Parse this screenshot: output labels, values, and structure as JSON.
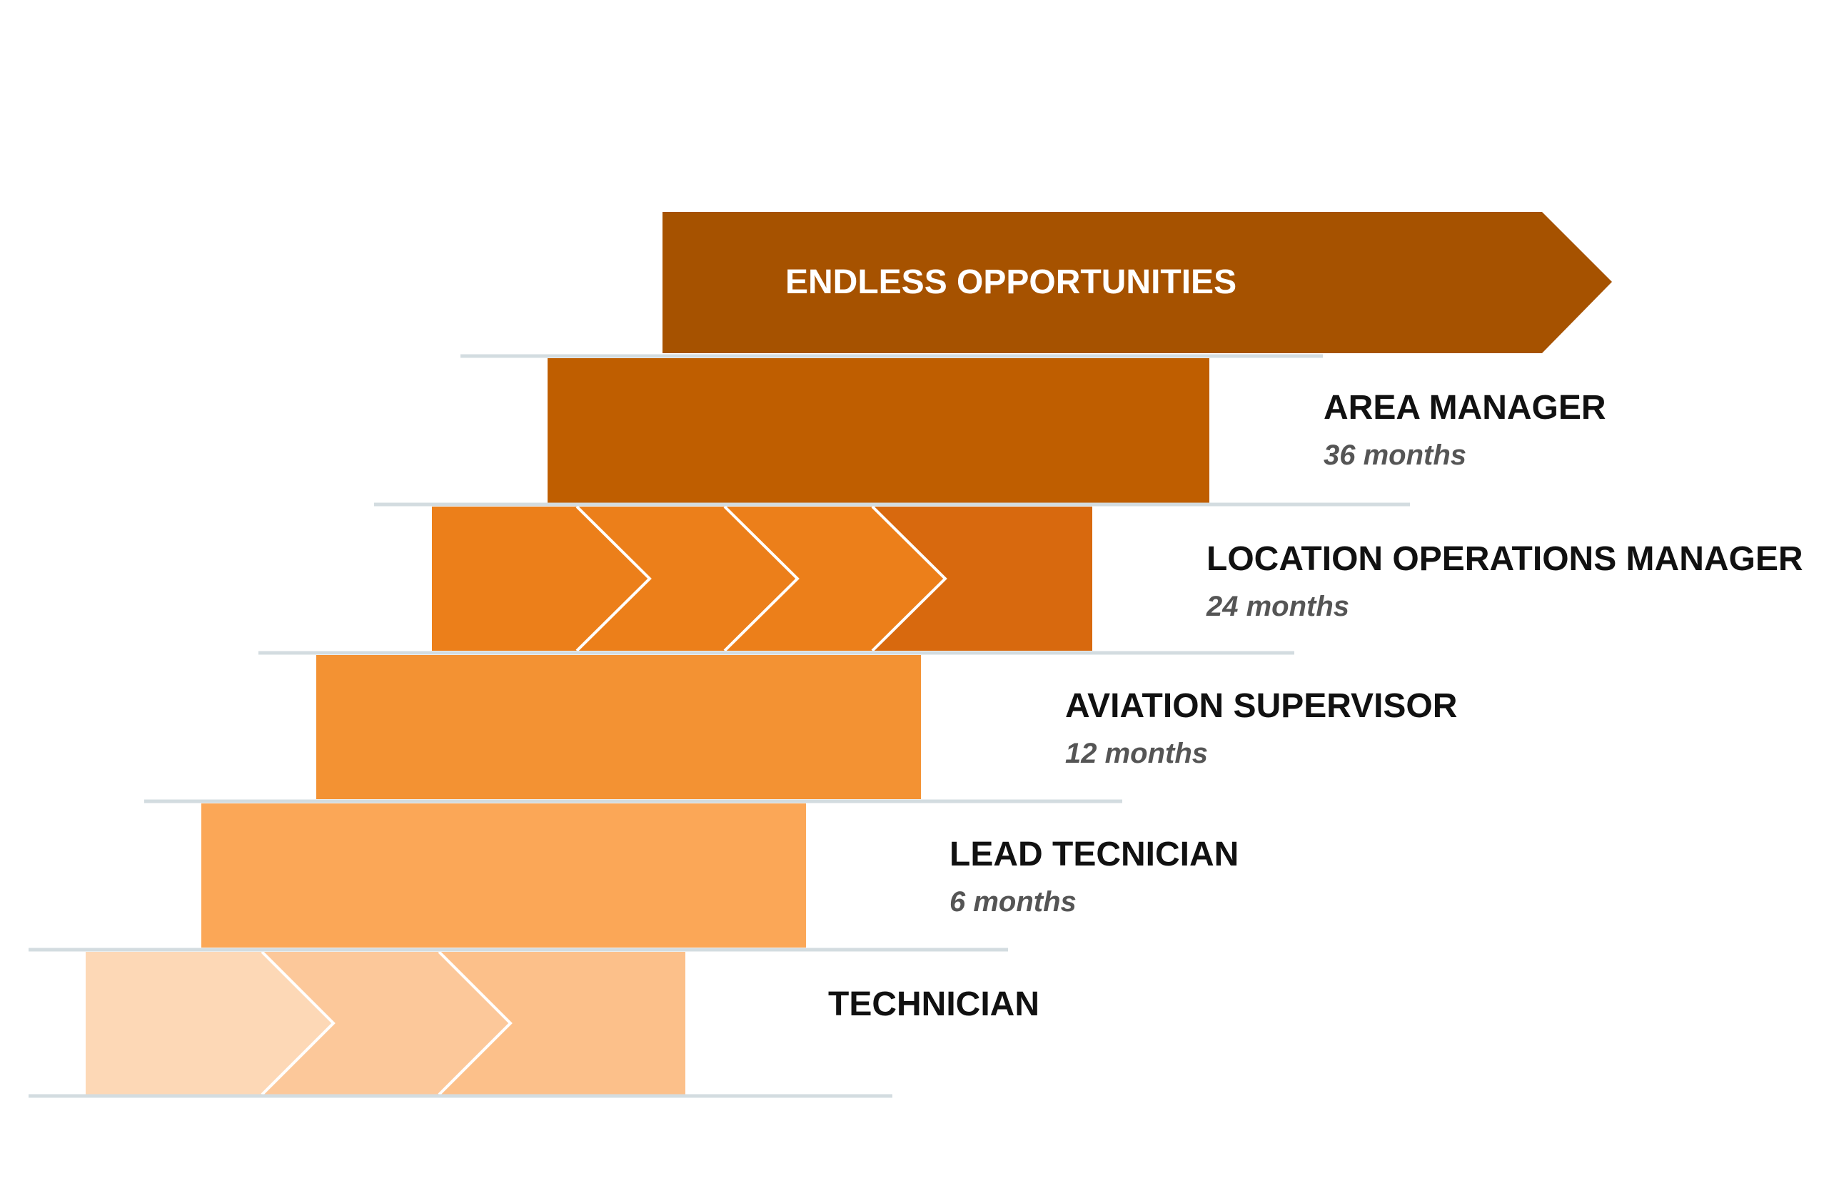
{
  "top_banner": {
    "label": "ENDLESS OPPORTUNITIES",
    "color": "#A65200"
  },
  "steps": [
    {
      "title": "AREA MANAGER",
      "duration": "36 months",
      "color": "#BF5E00"
    },
    {
      "title": "LOCATION OPERATIONS MANAGER",
      "duration": "24 months",
      "color": "#D8690E",
      "chevron_color": "#EC7F1A"
    },
    {
      "title": "AVIATION SUPERVISOR",
      "duration": "12 months",
      "color": "#F39233"
    },
    {
      "title": "LEAD TECNICIAN",
      "duration": "6 months",
      "color": "#FBA757"
    },
    {
      "title": "TECHNICIAN",
      "color": "#FCC08A",
      "chevron_colors": [
        "#FDD8B6",
        "#FCC89A"
      ]
    }
  ],
  "colors": {
    "step_line": "#D3DCE0",
    "chevron_stroke": "#ffffff"
  }
}
